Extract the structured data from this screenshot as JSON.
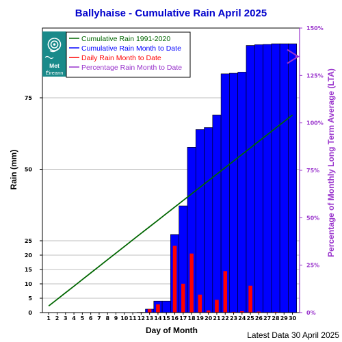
{
  "chart_data": {
    "type": "bar",
    "title": "Ballyhaise - Cumulative Rain April   2025",
    "xlabel": "Day of Month",
    "ylabel": "Rain (mm)",
    "ylabel_right": "Percentage  of Monthly Long Term Average (LTA)",
    "footer": "Latest Data 30 April 2025",
    "x": [
      1,
      2,
      3,
      4,
      5,
      6,
      7,
      8,
      9,
      10,
      11,
      12,
      13,
      14,
      15,
      16,
      17,
      18,
      19,
      20,
      21,
      22,
      23,
      24,
      25,
      26,
      27,
      28,
      29,
      30
    ],
    "x_ticks": [
      "1",
      "2",
      "3",
      "4",
      "5",
      "6",
      "7",
      "8",
      "9",
      "10",
      "11",
      "12",
      "13",
      "14",
      "15",
      "16",
      "17",
      "18",
      "19",
      "20",
      "21",
      "22",
      "23",
      "24",
      "25",
      "26",
      "27",
      "28",
      "29",
      "30"
    ],
    "y_ticks": [
      "0",
      "5",
      "10",
      "15",
      "20",
      "25",
      "50",
      "75"
    ],
    "y_right_ticks": [
      "0%",
      "25%",
      "50%",
      "75%",
      "100%",
      "125%",
      "150%"
    ],
    "ylim": [
      0,
      100.5
    ],
    "y_right_lim": [
      0,
      150
    ],
    "series": [
      {
        "name": "Cumulative Rain 1991-2020",
        "type": "line",
        "color": "#006600",
        "values": [
          2.3,
          4.6,
          6.9,
          9.2,
          11.5,
          13.8,
          16.1,
          18.4,
          20.7,
          23.0,
          25.3,
          27.6,
          29.9,
          32.2,
          34.5,
          36.8,
          39.1,
          41.4,
          43.7,
          46.0,
          48.3,
          50.6,
          52.9,
          55.2,
          57.5,
          59.8,
          62.1,
          64.4,
          66.7,
          69.0
        ]
      },
      {
        "name": "Cumulative Rain Month to Date",
        "type": "bar",
        "color": "#0000ff",
        "values": [
          0,
          0,
          0,
          0,
          0,
          0,
          0,
          0,
          0,
          0,
          0,
          0.1,
          1.2,
          4.0,
          4.0,
          27.2,
          37.2,
          57.7,
          63.9,
          64.6,
          69.0,
          83.4,
          83.6,
          84.0,
          93.3,
          93.6,
          93.7,
          93.9,
          93.9,
          93.9
        ]
      },
      {
        "name": "Daily Rain Month to Date",
        "type": "bar",
        "color": "#ff0000",
        "values": [
          0,
          0,
          0,
          0,
          0,
          0,
          0,
          0,
          0,
          0,
          0,
          0.1,
          1.1,
          2.8,
          0,
          23.2,
          10.0,
          20.5,
          6.2,
          0.7,
          4.4,
          14.4,
          0.2,
          0.4,
          9.3,
          0.3,
          0.1,
          0.2,
          0,
          0
        ]
      },
      {
        "name": "Percentage Rain Month to Date",
        "type": "marker",
        "color": "#9933cc",
        "value_percent": 135
      }
    ],
    "legend": {
      "placement": "top-left",
      "labels": [
        "Cumulative Rain 1991-2020",
        "Cumulative Rain Month to Date",
        "Daily Rain Month to Date",
        "Percentage Rain Month to Date"
      ],
      "colors": [
        "#006600",
        "#0000ff",
        "#ff0000",
        "#9933cc"
      ]
    },
    "grid": true
  },
  "logo": {
    "text": "Met Éireann",
    "color": "#1a8a8a"
  }
}
